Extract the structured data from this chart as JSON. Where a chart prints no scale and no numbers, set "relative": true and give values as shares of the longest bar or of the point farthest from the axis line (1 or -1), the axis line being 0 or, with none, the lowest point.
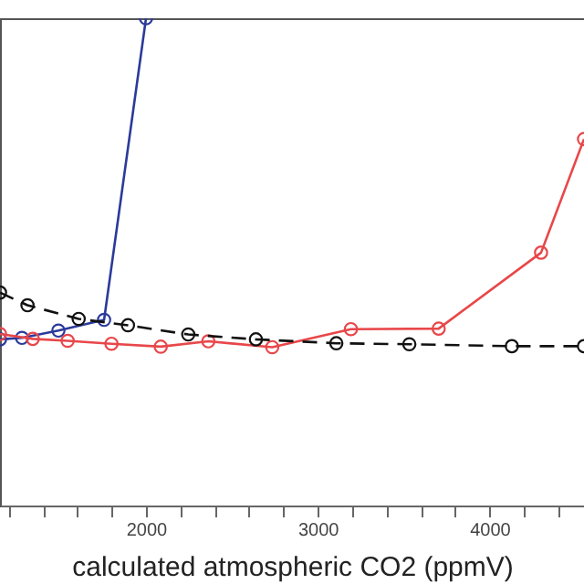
{
  "chart_data": {
    "type": "line",
    "relative": true,
    "xlabel": "calculated atmospheric CO2 (ppmV)",
    "xlim": [
      1150,
      4550
    ],
    "xticks": [
      {
        "value": 1200,
        "label": null
      },
      {
        "value": 1400,
        "label": null
      },
      {
        "value": 1600,
        "label": null
      },
      {
        "value": 1800,
        "label": null
      },
      2000,
      {
        "value": 2200,
        "label": null
      },
      {
        "value": 2400,
        "label": null
      },
      {
        "value": 2600,
        "label": null
      },
      {
        "value": 2800,
        "label": null
      },
      3000,
      {
        "value": 3200,
        "label": null
      },
      {
        "value": 3400,
        "label": null
      },
      {
        "value": 3600,
        "label": null
      },
      {
        "value": 3800,
        "label": null
      },
      4000,
      {
        "value": 4200,
        "label": null
      },
      {
        "value": 4400,
        "label": null
      }
    ],
    "grid": false,
    "series": [
      {
        "color": "#2b3a9a",
        "marker": "circle",
        "line_style": "solid",
        "x": [
          1150,
          1278,
          1490,
          1756,
          2000
        ],
        "values": [
          0.341,
          0.344,
          0.359,
          0.381,
          1
        ]
      },
      {
        "color": "#e8474a",
        "marker": "circle",
        "line_style": "solid",
        "x": [
          1150,
          1341,
          1544,
          1799,
          2086,
          2363,
          2735,
          3193,
          3704,
          4300,
          4550
        ],
        "values": [
          0.352,
          0.342,
          0.338,
          0.332,
          0.326,
          0.337,
          0.325,
          0.362,
          0.363,
          0.519,
          0.752
        ]
      },
      {
        "color": "#111111",
        "marker": "circle",
        "line_style": "dashed",
        "x": [
          1150,
          1310,
          1608,
          1895,
          2246,
          2640,
          3108,
          3533,
          4130,
          4550
        ],
        "values": [
          0.437,
          0.411,
          0.383,
          0.37,
          0.351,
          0.341,
          0.333,
          0.331,
          0.327,
          0.327
        ]
      }
    ]
  }
}
